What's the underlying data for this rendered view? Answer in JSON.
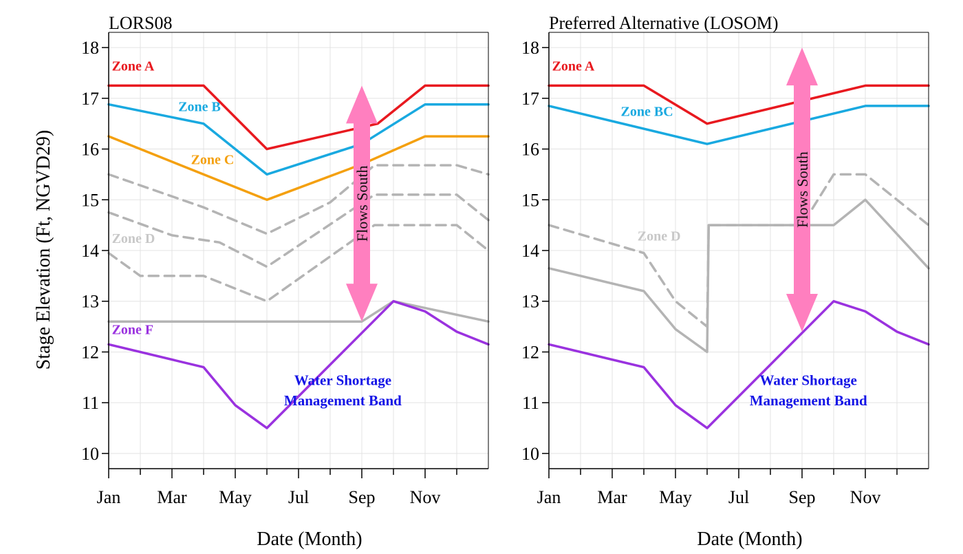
{
  "figure": {
    "ylabel": "Stage Elevation (Ft, NGVD29)",
    "xlabel": "Date (Month)"
  },
  "chart_data": [
    {
      "type": "line",
      "title": "LORS08",
      "xlabel": "Date (Month)",
      "ylabel": "Stage Elevation (Ft, NGVD29)",
      "xlim": [
        1,
        13
      ],
      "ylim": [
        9.7,
        18.3
      ],
      "xticks": [
        1,
        2,
        3,
        4,
        5,
        6,
        7,
        8,
        9,
        10,
        11,
        12
      ],
      "xtick_labels": {
        "1": "Jan",
        "3": "Mar",
        "5": "May",
        "7": "Jul",
        "9": "Sep",
        "11": "Nov"
      },
      "yticks": [
        10,
        11,
        12,
        13,
        14,
        15,
        16,
        17,
        18
      ],
      "grid": true,
      "series": [
        {
          "name": "Zone A",
          "color": "#e8191f",
          "dash": false,
          "x": [
            1,
            4,
            6,
            9.5,
            11,
            13
          ],
          "y": [
            17.25,
            17.25,
            16.0,
            16.5,
            17.25,
            17.25
          ]
        },
        {
          "name": "Zone B",
          "color": "#19a9e0",
          "dash": false,
          "x": [
            1,
            4,
            6,
            9,
            11,
            13
          ],
          "y": [
            16.88,
            16.5,
            15.5,
            16.1,
            16.88,
            16.88
          ]
        },
        {
          "name": "Zone C",
          "color": "#f4a00f",
          "dash": false,
          "x": [
            1,
            6,
            9,
            11,
            13
          ],
          "y": [
            16.25,
            15.0,
            15.7,
            16.25,
            16.25
          ]
        },
        {
          "color": "#b4b4b4",
          "dash": true,
          "x": [
            1,
            4,
            6,
            8,
            9.4,
            10.2,
            12,
            13
          ],
          "y": [
            15.5,
            14.85,
            14.33,
            14.95,
            15.68,
            15.68,
            15.68,
            15.5
          ]
        },
        {
          "color": "#b4b4b4",
          "dash": true,
          "x": [
            1,
            3,
            4.5,
            6,
            9.4,
            10.2,
            12,
            13
          ],
          "y": [
            14.75,
            14.3,
            14.16,
            13.68,
            15.1,
            15.1,
            15.1,
            14.6
          ]
        },
        {
          "color": "#b4b4b4",
          "dash": true,
          "x": [
            1,
            2,
            4,
            6,
            9.4,
            10.2,
            12,
            13
          ],
          "y": [
            13.95,
            13.5,
            13.5,
            13.0,
            14.5,
            14.5,
            14.5,
            14.0
          ]
        },
        {
          "color": "#b4b4b4",
          "dash": false,
          "x": [
            1,
            9,
            10,
            13
          ],
          "y": [
            12.6,
            12.6,
            13.0,
            12.6
          ]
        },
        {
          "name": "Zone F",
          "color": "#9a32df",
          "dash": false,
          "x": [
            1,
            4,
            5,
            6,
            10,
            11,
            12,
            13
          ],
          "y": [
            12.15,
            11.7,
            10.95,
            10.5,
            13.0,
            12.8,
            12.4,
            12.15
          ]
        }
      ],
      "annotations": [
        {
          "text": "Zone A",
          "color": "#e8191f",
          "x": 1.1,
          "y": 17.55,
          "anchor": "start",
          "size": 20,
          "bold": true
        },
        {
          "text": "Zone B",
          "color": "#19a9e0",
          "x": 3.2,
          "y": 16.75,
          "anchor": "start",
          "size": 20,
          "bold": true
        },
        {
          "text": "Zone C",
          "color": "#f4a00f",
          "x": 3.6,
          "y": 15.7,
          "anchor": "start",
          "size": 20,
          "bold": true
        },
        {
          "text": "Zone D",
          "color": "#c8c8c8",
          "x": 1.1,
          "y": 14.15,
          "anchor": "start",
          "size": 20,
          "bold": true
        },
        {
          "text": "Zone F",
          "color": "#9a32df",
          "x": 1.1,
          "y": 12.35,
          "anchor": "start",
          "size": 20,
          "bold": true
        },
        {
          "text": "Water Shortage",
          "color": "#1414e6",
          "x": 8.4,
          "y": 11.35,
          "anchor": "middle",
          "size": 21,
          "bold": true
        },
        {
          "text": "Management Band",
          "color": "#1414e6",
          "x": 8.4,
          "y": 10.95,
          "anchor": "middle",
          "size": 21,
          "bold": true
        }
      ],
      "arrow": {
        "label": "Flows South",
        "color": "#ff7fbf",
        "x": 9.0,
        "y_top": 17.25,
        "y_bottom": 12.6
      }
    },
    {
      "type": "line",
      "title": "Preferred Alternative (LOSOM)",
      "xlabel": "Date (Month)",
      "ylabel": "",
      "xlim": [
        1,
        13
      ],
      "ylim": [
        9.7,
        18.3
      ],
      "xticks": [
        1,
        2,
        3,
        4,
        5,
        6,
        7,
        8,
        9,
        10,
        11,
        12
      ],
      "xtick_labels": {
        "1": "Jan",
        "3": "Mar",
        "5": "May",
        "7": "Jul",
        "9": "Sep",
        "11": "Nov"
      },
      "yticks": [
        10,
        11,
        12,
        13,
        14,
        15,
        16,
        17,
        18
      ],
      "grid": true,
      "series": [
        {
          "name": "Zone A",
          "color": "#e8191f",
          "dash": false,
          "x": [
            1,
            4,
            6,
            11,
            13
          ],
          "y": [
            17.25,
            17.25,
            16.5,
            17.25,
            17.25
          ]
        },
        {
          "name": "Zone BC",
          "color": "#19a9e0",
          "dash": false,
          "x": [
            1,
            6,
            11,
            13
          ],
          "y": [
            16.85,
            16.1,
            16.85,
            16.85
          ]
        },
        {
          "color": "#b4b4b4",
          "dash": true,
          "x": [
            1,
            4,
            5,
            6,
            6.05,
            9,
            10,
            11,
            13
          ],
          "y": [
            14.5,
            13.95,
            13.0,
            12.5,
            14.5,
            14.5,
            15.5,
            15.5,
            14.5
          ]
        },
        {
          "color": "#b4b4b4",
          "dash": false,
          "x": [
            1,
            4,
            5,
            6,
            6.05,
            10,
            11,
            13
          ],
          "y": [
            13.65,
            13.2,
            12.45,
            12.0,
            14.5,
            14.5,
            15.0,
            13.65
          ]
        },
        {
          "color": "#9a32df",
          "dash": false,
          "x": [
            1,
            4,
            5,
            6,
            10,
            11,
            12,
            13
          ],
          "y": [
            12.15,
            11.7,
            10.95,
            10.5,
            13.0,
            12.8,
            12.4,
            12.15
          ]
        }
      ],
      "annotations": [
        {
          "text": "Zone A",
          "color": "#e8191f",
          "x": 1.1,
          "y": 17.55,
          "anchor": "start",
          "size": 20,
          "bold": true
        },
        {
          "text": "Zone BC",
          "color": "#19a9e0",
          "x": 4.1,
          "y": 16.65,
          "anchor": "middle",
          "size": 20,
          "bold": true
        },
        {
          "text": "Zone D",
          "color": "#c8c8c8",
          "x": 3.8,
          "y": 14.2,
          "anchor": "start",
          "size": 20,
          "bold": true
        },
        {
          "text": "Water Shortage",
          "color": "#1414e6",
          "x": 9.2,
          "y": 11.35,
          "anchor": "middle",
          "size": 21,
          "bold": true
        },
        {
          "text": "Management Band",
          "color": "#1414e6",
          "x": 9.2,
          "y": 10.95,
          "anchor": "middle",
          "size": 21,
          "bold": true
        }
      ],
      "arrow": {
        "label": "Flows South",
        "color": "#ff7fbf",
        "x": 9.0,
        "y_top": 18.0,
        "y_bottom": 12.4
      }
    }
  ]
}
